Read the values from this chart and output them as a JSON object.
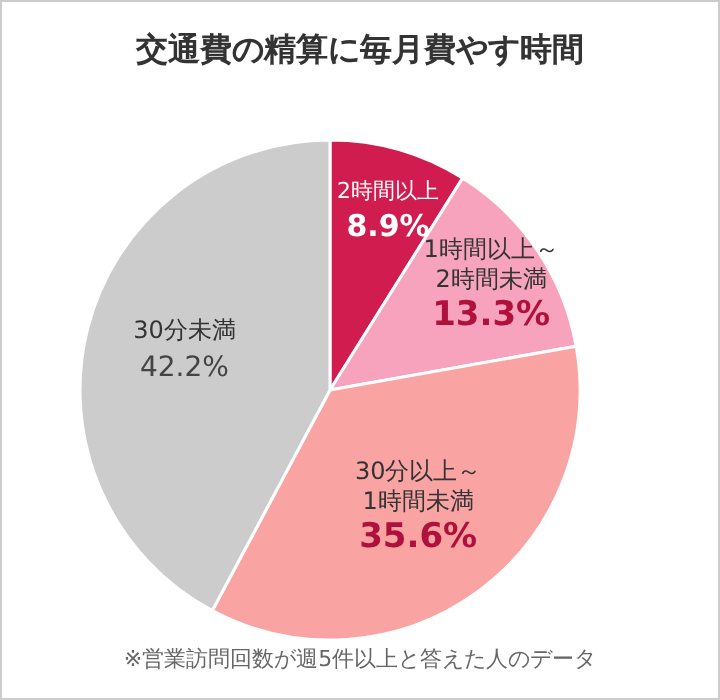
{
  "chart_data": {
    "type": "pie",
    "title": "交通費の精算に毎月費やす時間",
    "categories": [
      "2時間以上",
      "1時間以上～2時間未満",
      "30分以上～1時間未満",
      "30分未満"
    ],
    "values": [
      8.9,
      13.3,
      35.6,
      42.2
    ],
    "colors": [
      "#d01c4e",
      "#f7a3bd",
      "#f9a3a3",
      "#cccccc"
    ],
    "value_labels": [
      "8.9%",
      "13.3%",
      "35.6%",
      "42.2%"
    ],
    "annotations": [
      "※営業訪問回数が週5件以上と答えた人のデータ"
    ]
  }
}
